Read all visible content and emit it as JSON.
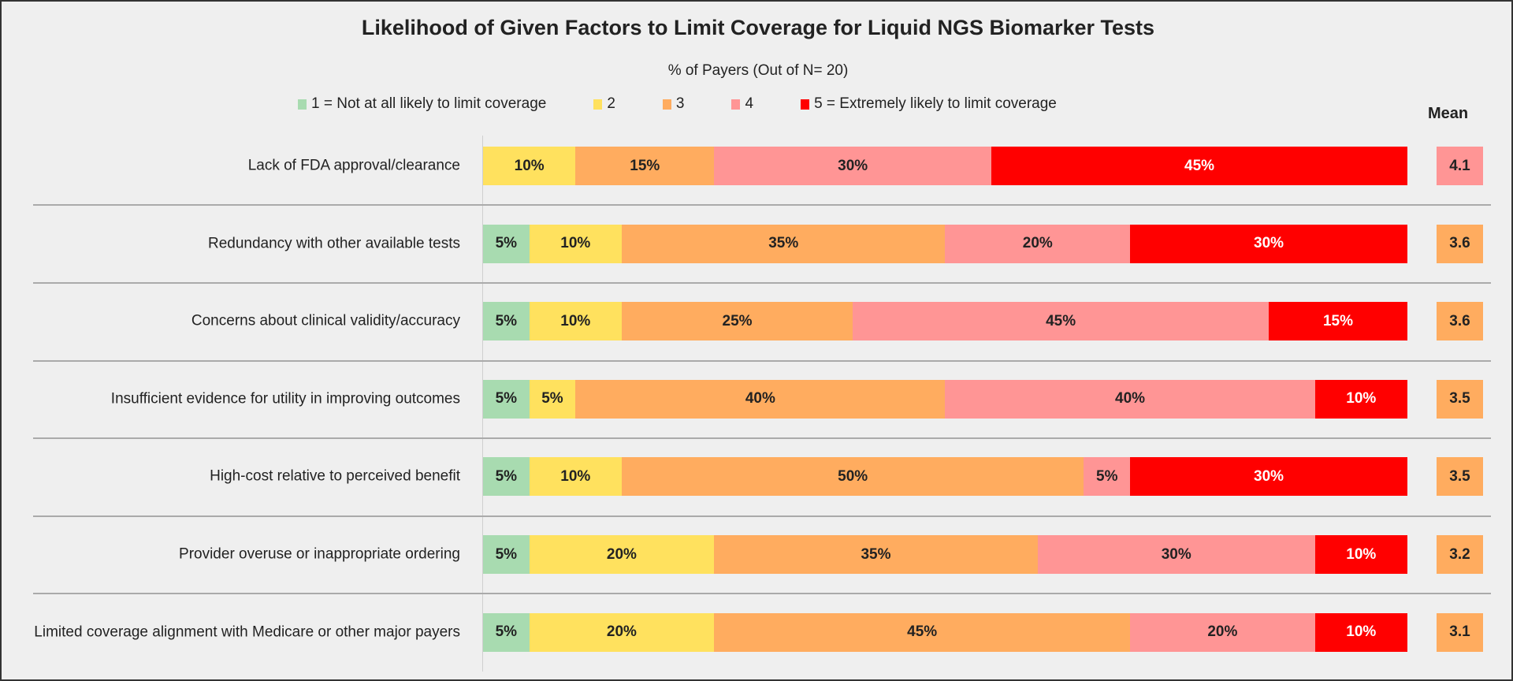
{
  "chart_data": {
    "type": "bar",
    "orientation": "horizontal-stacked-100",
    "title": "Likelihood of Given Factors to Limit Coverage for Liquid NGS Biomarker Tests",
    "subtitle": "% of Payers (Out of N= 20)",
    "mean_header": "Mean",
    "legend_position": "top",
    "series": [
      {
        "name": "1 = Not at all likely to limit coverage",
        "color": "#a8dbb0"
      },
      {
        "name": "2",
        "color": "#ffe15e"
      },
      {
        "name": "3",
        "color": "#ffac5f"
      },
      {
        "name": "4",
        "color": "#ff9595"
      },
      {
        "name": "5 = Extremely likely to limit coverage",
        "color": "#ff0000"
      }
    ],
    "categories": [
      {
        "label": "Lack of FDA approval/clearance",
        "values": [
          0,
          10,
          15,
          30,
          45
        ],
        "mean": "4.1",
        "mean_color": "#ff9595"
      },
      {
        "label": "Redundancy with other available tests",
        "values": [
          5,
          10,
          35,
          20,
          30
        ],
        "mean": "3.6",
        "mean_color": "#ffac5f"
      },
      {
        "label": "Concerns about clinical validity/accuracy",
        "values": [
          5,
          10,
          25,
          45,
          15
        ],
        "mean": "3.6",
        "mean_color": "#ffac5f"
      },
      {
        "label": "Insufficient evidence for utility in improving outcomes",
        "values": [
          5,
          5,
          40,
          40,
          10
        ],
        "mean": "3.5",
        "mean_color": "#ffac5f"
      },
      {
        "label": "High-cost relative to perceived benefit",
        "values": [
          5,
          10,
          50,
          5,
          30
        ],
        "mean": "3.5",
        "mean_color": "#ffac5f"
      },
      {
        "label": "Provider overuse or inappropriate ordering",
        "values": [
          5,
          20,
          35,
          30,
          10
        ],
        "mean": "3.2",
        "mean_color": "#ffac5f"
      },
      {
        "label": "Limited coverage alignment with Medicare or other major payers",
        "values": [
          5,
          20,
          45,
          20,
          10
        ],
        "mean": "3.1",
        "mean_color": "#ffac5f"
      }
    ],
    "value_suffix": "%",
    "xlim": [
      0,
      100
    ],
    "grid": false
  }
}
